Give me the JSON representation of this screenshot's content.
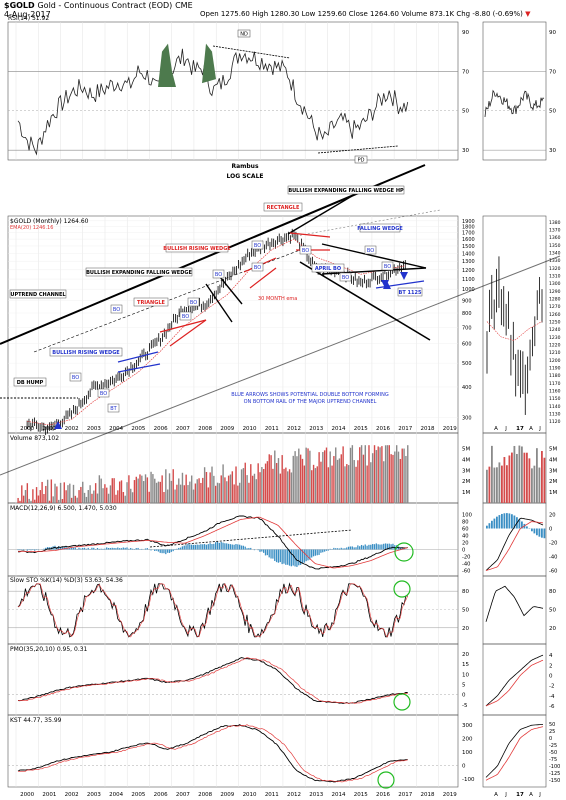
{
  "header": {
    "symbol": "$GOLD",
    "name": "Gold - Continuous Contract (EOD)",
    "exchange": "CME",
    "date": "4-Aug-2017",
    "ohlc": "Open 1275.60  High 1280.30  Low 1259.60  Close 1264.60  Volume 873.1K  Chg -8.80 (-0.69%)",
    "ohlc_indicator": "▼"
  },
  "panels": {
    "rsi": {
      "label": "RSI(14) 51.92",
      "ticks": [
        "90",
        "70",
        "50",
        "30"
      ]
    },
    "price": {
      "label": "$GOLD (Monthly) 1264.60",
      "ema_label": "EMA(20) 1246.16",
      "watermark": "Rambus",
      "scale_note": "LOG SCALE",
      "left_ticks": [
        "1900",
        "1800",
        "1700",
        "1600",
        "1500",
        "1400",
        "1300",
        "1200",
        "1100",
        "1000",
        "900",
        "800",
        "700",
        "600",
        "500",
        "400",
        "300"
      ],
      "right_ticks": [
        "1380",
        "1370",
        "1360",
        "1350",
        "1340",
        "1330",
        "1320",
        "1310",
        "1300",
        "1290",
        "1280",
        "1270",
        "1260",
        "1250",
        "1240",
        "1230",
        "1220",
        "1210",
        "1200",
        "1190",
        "1180",
        "1170",
        "1160",
        "1150",
        "1140",
        "1130",
        "1120"
      ]
    },
    "volume": {
      "label": "Volume 873,102",
      "ticks": [
        "5M",
        "4M",
        "3M",
        "2M",
        "1M"
      ]
    },
    "macd": {
      "label": "MACD(12,26,9) 6.500, 1.470, 5.030",
      "ticks": [
        "100",
        "80",
        "60",
        "40",
        "20",
        "0",
        "-20",
        "-40",
        "-60"
      ],
      "right_ticks": [
        "20",
        "0",
        "-20",
        "-40",
        "-60"
      ]
    },
    "sto": {
      "label": "Slow STO %K(14) %D(3) 53.63, 54.36",
      "ticks": [
        "80",
        "50",
        "20"
      ]
    },
    "pmo": {
      "label": "PMO(35,20,10) 0.95, 0.31",
      "ticks": [
        "20",
        "15",
        "10",
        "5",
        "0",
        "-5"
      ],
      "right_ticks": [
        "4",
        "2",
        "0",
        "-2",
        "-4",
        "-6"
      ]
    },
    "kst": {
      "label": "KST 44.77, 35.99",
      "ticks": [
        "300",
        "200",
        "100",
        "0",
        "-100"
      ],
      "right_ticks": [
        "50",
        "25",
        "0",
        "-25",
        "-50",
        "-75",
        "-100",
        "-125",
        "-150"
      ]
    }
  },
  "years": [
    "2000",
    "2001",
    "2002",
    "2003",
    "2004",
    "2005",
    "2006",
    "2007",
    "2008",
    "2009",
    "2010",
    "2011",
    "2012",
    "2013",
    "2014",
    "2015",
    "2016",
    "2017",
    "2018",
    "2019"
  ],
  "months_right": [
    "A",
    "J",
    "17",
    "A",
    "J"
  ],
  "annotations": {
    "nd": "ND",
    "pd": "PD",
    "db_hump": "DB HUMP",
    "uptrend_channel": "UPTREND CHANNEL",
    "bullish_rising_wedge_1": "BULLISH RISING WEDGE",
    "triangle": "TRIANGLE",
    "bullish_expanding_falling_wedge": "BULLISH EXPANDING FALLING WEDGE",
    "bullish_rising_wedge_2": "BULLISH RISING WEDGE",
    "rectangle": "RECTANGLE",
    "bullish_expanding_falling_wedge_hp": "BULLISH EXPANDING FALLING WEDGE HP",
    "falling_wedge": "FALLING WEDGE",
    "april_bo": "APRIL BO",
    "month_ema": "30 MONTH ema",
    "bt_1125": "BT 1125",
    "bo": "BO",
    "bt": "BT",
    "blue_arrows_note_1": "BLUE ARROWS SHOWS POTENTIAL DOUBLE BOTTOM FORMING",
    "blue_arrows_note_2": "ON BOTTOM RAIL OF THE MAJOR UPTREND CHANNEL"
  },
  "colors": {
    "up": "#000000",
    "ema": "#e23b3b",
    "wedge_blue": "#2233cc",
    "red": "#dd2222",
    "hist": "#3b8fc4",
    "vol_red": "#d44b4b",
    "vol_gray": "#8a8a8a",
    "highlight": "#22bb22",
    "divergence_fill": "#4d7a4d"
  },
  "chart_data": {
    "type": "line",
    "title": "$GOLD (Monthly) 1264.60",
    "x": [
      "2000",
      "2001",
      "2002",
      "2003",
      "2004",
      "2005",
      "2006",
      "2007",
      "2008",
      "2009",
      "2010",
      "2011",
      "2012",
      "2013",
      "2014",
      "2015",
      "2016",
      "2017"
    ],
    "series": [
      {
        "name": "$GOLD",
        "values": [
          285,
          270,
          310,
          400,
          430,
          510,
          630,
          830,
          870,
          1100,
          1400,
          1560,
          1670,
          1200,
          1200,
          1060,
          1150,
          1264
        ]
      },
      {
        "name": "EMA(20)",
        "values": [
          290,
          280,
          295,
          350,
          400,
          460,
          560,
          700,
          820,
          950,
          1200,
          1450,
          1600,
          1350,
          1250,
          1150,
          1200,
          1246
        ]
      }
    ],
    "ylim": [
      280,
      1950
    ],
    "scale": "log",
    "grid": true
  }
}
